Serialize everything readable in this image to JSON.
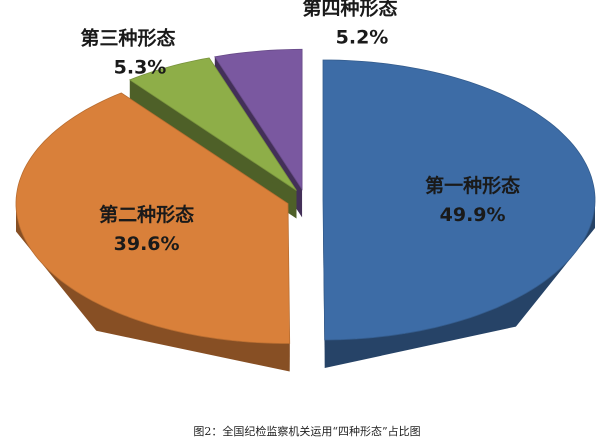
{
  "chart_data": {
    "type": "pie3d",
    "title": "图2：全国纪检监察机关运用“四种形态”占比图",
    "categories": [
      "第一种形态",
      "第二种形态",
      "第三种形态",
      "第四种形态"
    ],
    "values": [
      49.9,
      39.6,
      5.3,
      5.2
    ],
    "value_labels": [
      "49.9%",
      "39.6%",
      "5.3%",
      "5.2%"
    ],
    "colors": [
      "#3d6ca6",
      "#d9803a",
      "#8eae48",
      "#7a58a0"
    ]
  }
}
